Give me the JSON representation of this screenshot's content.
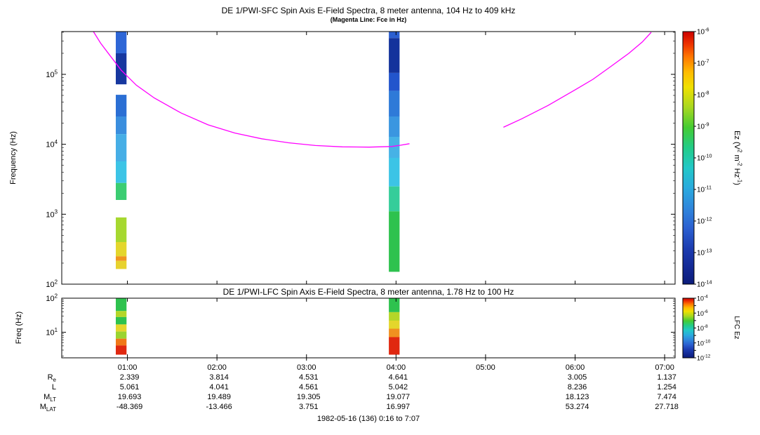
{
  "chart_data": {
    "type": "heatmap",
    "description": "Dual-panel spectrogram with burst data columns, Fce overlay line and rainbow colorbars",
    "time": {
      "start_hour": 0.2667,
      "end_hour": 7.1167,
      "xticks": [
        {
          "label": "01:00",
          "hour": 1
        },
        {
          "label": "02:00",
          "hour": 2
        },
        {
          "label": "03:00",
          "hour": 3
        },
        {
          "label": "04:00",
          "hour": 4
        },
        {
          "label": "05:00",
          "hour": 5
        },
        {
          "label": "06:00",
          "hour": 6
        },
        {
          "label": "07:00",
          "hour": 7
        }
      ]
    },
    "colormap": [
      {
        "pos": 0.0,
        "color": "#cc0000"
      },
      {
        "pos": 0.05,
        "color": "#ee3300"
      },
      {
        "pos": 0.1,
        "color": "#ff7700"
      },
      {
        "pos": 0.16,
        "color": "#ffbb00"
      },
      {
        "pos": 0.22,
        "color": "#f0e000"
      },
      {
        "pos": 0.3,
        "color": "#a8d820"
      },
      {
        "pos": 0.38,
        "color": "#44cc33"
      },
      {
        "pos": 0.46,
        "color": "#22cc88"
      },
      {
        "pos": 0.54,
        "color": "#22c8c8"
      },
      {
        "pos": 0.62,
        "color": "#2aaade"
      },
      {
        "pos": 0.7,
        "color": "#2f86dc"
      },
      {
        "pos": 0.78,
        "color": "#2b5fd0"
      },
      {
        "pos": 0.86,
        "color": "#1c3cb0"
      },
      {
        "pos": 0.93,
        "color": "#142a96"
      },
      {
        "pos": 1.0,
        "color": "#0c1c7a"
      }
    ],
    "panels": [
      {
        "id": "sfc",
        "title": "DE 1/PWI-SFC  Spin Axis E-Field Spectra, 8 meter antenna, 104 Hz to 409 kHz",
        "subtitle": "(Magenta Line: Fce in Hz)",
        "ylabel": "Frequency (Hz)",
        "ylim": [
          100,
          409000
        ],
        "yscale": "log",
        "ytick_exponents": [
          5,
          4,
          3,
          2
        ],
        "colorbar": {
          "label": "Ez (V2 m-2 Hz-1)",
          "label_parts": [
            {
              "t": "Ez (V"
            },
            {
              "t": "2",
              "sup": true
            },
            {
              "t": " m"
            },
            {
              "t": "-2",
              "sup": true
            },
            {
              "t": " Hz"
            },
            {
              "t": "-1",
              "sup": true
            },
            {
              "t": ")"
            }
          ],
          "exp_top": -6,
          "exp_bottom": -14,
          "label_every": 1
        },
        "fce_line": {
          "color": "#ff00ff",
          "segments": [
            [
              [
                0.62,
                409000
              ],
              [
                0.7,
                280000
              ],
              [
                0.8,
                190000
              ],
              [
                0.93,
                115000
              ],
              [
                1.1,
                70000
              ],
              [
                1.3,
                46000
              ],
              [
                1.6,
                28000
              ],
              [
                1.9,
                19000
              ],
              [
                2.2,
                14500
              ],
              [
                2.5,
                12000
              ],
              [
                2.8,
                10500
              ],
              [
                3.1,
                9600
              ],
              [
                3.4,
                9200
              ],
              [
                3.7,
                9100
              ],
              [
                3.95,
                9300
              ],
              [
                4.05,
                9700
              ],
              [
                4.15,
                10200
              ]
            ],
            [
              [
                5.2,
                17500
              ],
              [
                5.4,
                23000
              ],
              [
                5.7,
                36000
              ],
              [
                6.0,
                60000
              ],
              [
                6.2,
                85000
              ],
              [
                6.4,
                130000
              ],
              [
                6.6,
                200000
              ],
              [
                6.75,
                290000
              ],
              [
                6.85,
                400000
              ]
            ]
          ]
        },
        "bursts": [
          {
            "h0": 0.87,
            "h1": 0.99,
            "segments": [
              {
                "f0": 200000,
                "f1": 409000,
                "c": "#2e66d6"
              },
              {
                "f0": 72000,
                "f1": 200000,
                "c": "#17379f"
              },
              {
                "f0": 25000,
                "f1": 51000,
                "c": "#2b6fd4"
              },
              {
                "f0": 14000,
                "f1": 25000,
                "c": "#3a8ede"
              },
              {
                "f0": 5700,
                "f1": 14000,
                "c": "#46aee6"
              },
              {
                "f0": 2800,
                "f1": 5700,
                "c": "#3cc4e6"
              },
              {
                "f0": 1600,
                "f1": 2800,
                "c": "#3bcd72"
              },
              {
                "f0": 400,
                "f1": 900,
                "c": "#a6d830"
              },
              {
                "f0": 250,
                "f1": 400,
                "c": "#e4d62c"
              },
              {
                "f0": 215,
                "f1": 250,
                "c": "#f0961e"
              },
              {
                "f0": 165,
                "f1": 215,
                "c": "#e8d22e"
              }
            ]
          },
          {
            "h0": 3.92,
            "h1": 4.04,
            "segments": [
              {
                "f0": 330000,
                "f1": 409000,
                "c": "#2b5fd0"
              },
              {
                "f0": 105000,
                "f1": 330000,
                "c": "#14339c"
              },
              {
                "f0": 58000,
                "f1": 105000,
                "c": "#2255cc"
              },
              {
                "f0": 25000,
                "f1": 58000,
                "c": "#2e7ad8"
              },
              {
                "f0": 12800,
                "f1": 25000,
                "c": "#3a96e0"
              },
              {
                "f0": 6400,
                "f1": 12800,
                "c": "#46b2e6"
              },
              {
                "f0": 2500,
                "f1": 6400,
                "c": "#3cc4e6"
              },
              {
                "f0": 1100,
                "f1": 2500,
                "c": "#35cd9a"
              },
              {
                "f0": 150,
                "f1": 1100,
                "c": "#2ec24e"
              }
            ]
          }
        ]
      },
      {
        "id": "lfc",
        "title": "DE 1/PWI-LFC  Spin Axis E-Field Spectra, 8 meter antenna, 1.78 Hz to 100 Hz",
        "subtitle": "",
        "ylabel": "Freq (Hz)",
        "ylim": [
          1.78,
          100
        ],
        "yscale": "log",
        "ytick_exponents": [
          2,
          1
        ],
        "colorbar": {
          "label": "LFC Ez",
          "exp_top": -4,
          "exp_bottom": -12,
          "label_every": 2
        },
        "bursts": [
          {
            "h0": 0.87,
            "h1": 0.99,
            "segments": [
              {
                "f0": 42,
                "f1": 100,
                "c": "#2ec24e"
              },
              {
                "f0": 28,
                "f1": 42,
                "c": "#b4d628"
              },
              {
                "f0": 17,
                "f1": 28,
                "c": "#2ec24e"
              },
              {
                "f0": 10.5,
                "f1": 17,
                "c": "#e4d62c"
              },
              {
                "f0": 6.5,
                "f1": 10.5,
                "c": "#9ad430"
              },
              {
                "f0": 4.1,
                "f1": 6.5,
                "c": "#f07818"
              },
              {
                "f0": 2.2,
                "f1": 4.1,
                "c": "#e02810"
              }
            ]
          },
          {
            "h0": 3.92,
            "h1": 4.04,
            "segments": [
              {
                "f0": 39,
                "f1": 100,
                "c": "#2ec24e"
              },
              {
                "f0": 22,
                "f1": 39,
                "c": "#b4d628"
              },
              {
                "f0": 12.7,
                "f1": 22,
                "c": "#e4d62c"
              },
              {
                "f0": 7.2,
                "f1": 12.7,
                "c": "#f09020"
              },
              {
                "f0": 2.2,
                "f1": 7.2,
                "c": "#e02810"
              }
            ]
          }
        ]
      }
    ],
    "ephemeris": {
      "rows": [
        {
          "label": "R",
          "sub": "e",
          "values": [
            "2.339",
            "3.814",
            "4.531",
            "4.641",
            "",
            "3.005",
            "1.137"
          ]
        },
        {
          "label": "L",
          "sub": "",
          "values": [
            "5.061",
            "4.041",
            "4.561",
            "5.042",
            "",
            "8.236",
            "1.254"
          ]
        },
        {
          "label": "M",
          "sub": "LT",
          "values": [
            "19.693",
            "19.489",
            "19.305",
            "19.077",
            "",
            "18.123",
            "7.474"
          ]
        },
        {
          "label": "M",
          "sub": "LAT",
          "values": [
            "-48.369",
            "-13.466",
            "3.751",
            "16.997",
            "",
            "53.274",
            "27.718"
          ]
        }
      ],
      "footer": "1982-05-16 (136) 0:16 to 7:07"
    }
  }
}
